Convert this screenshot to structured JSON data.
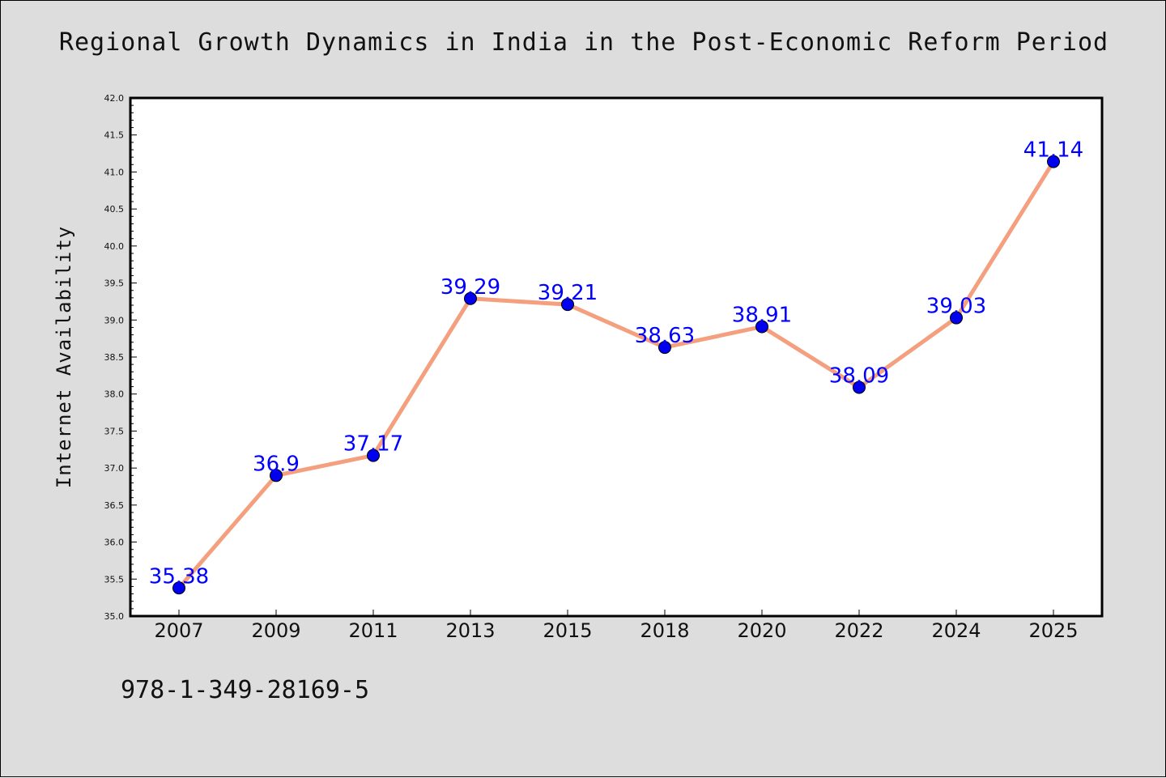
{
  "chart_data": {
    "type": "line",
    "title": "Regional Growth Dynamics in India in the Post-Economic Reform Period",
    "xlabel": "",
    "ylabel": "Internet Availability",
    "categories": [
      "2007",
      "2009",
      "2011",
      "2013",
      "2015",
      "2018",
      "2020",
      "2022",
      "2024",
      "2025"
    ],
    "values": [
      35.38,
      36.9,
      37.17,
      39.29,
      39.21,
      38.63,
      38.91,
      38.09,
      39.03,
      41.14
    ],
    "data_labels": [
      "35.38",
      "36.9",
      "37.17",
      "39.29",
      "39.21",
      "38.63",
      "38.91",
      "38.09",
      "39.03",
      "41.14"
    ],
    "ylim": [
      35.0,
      42.0
    ],
    "yticks": [
      "35.0",
      "35.5",
      "36.0",
      "36.5",
      "37.0",
      "37.5",
      "38.0",
      "38.5",
      "39.0",
      "39.5",
      "40.0",
      "40.5",
      "41.0",
      "41.5",
      "42.0"
    ],
    "grid": false,
    "colors": {
      "line": "#f4a07f",
      "marker": "#0000ee",
      "label": "#0000ff",
      "background": "#dddddd",
      "plot_area": "#ffffff"
    }
  },
  "footnote": "978-1-349-28169-5"
}
